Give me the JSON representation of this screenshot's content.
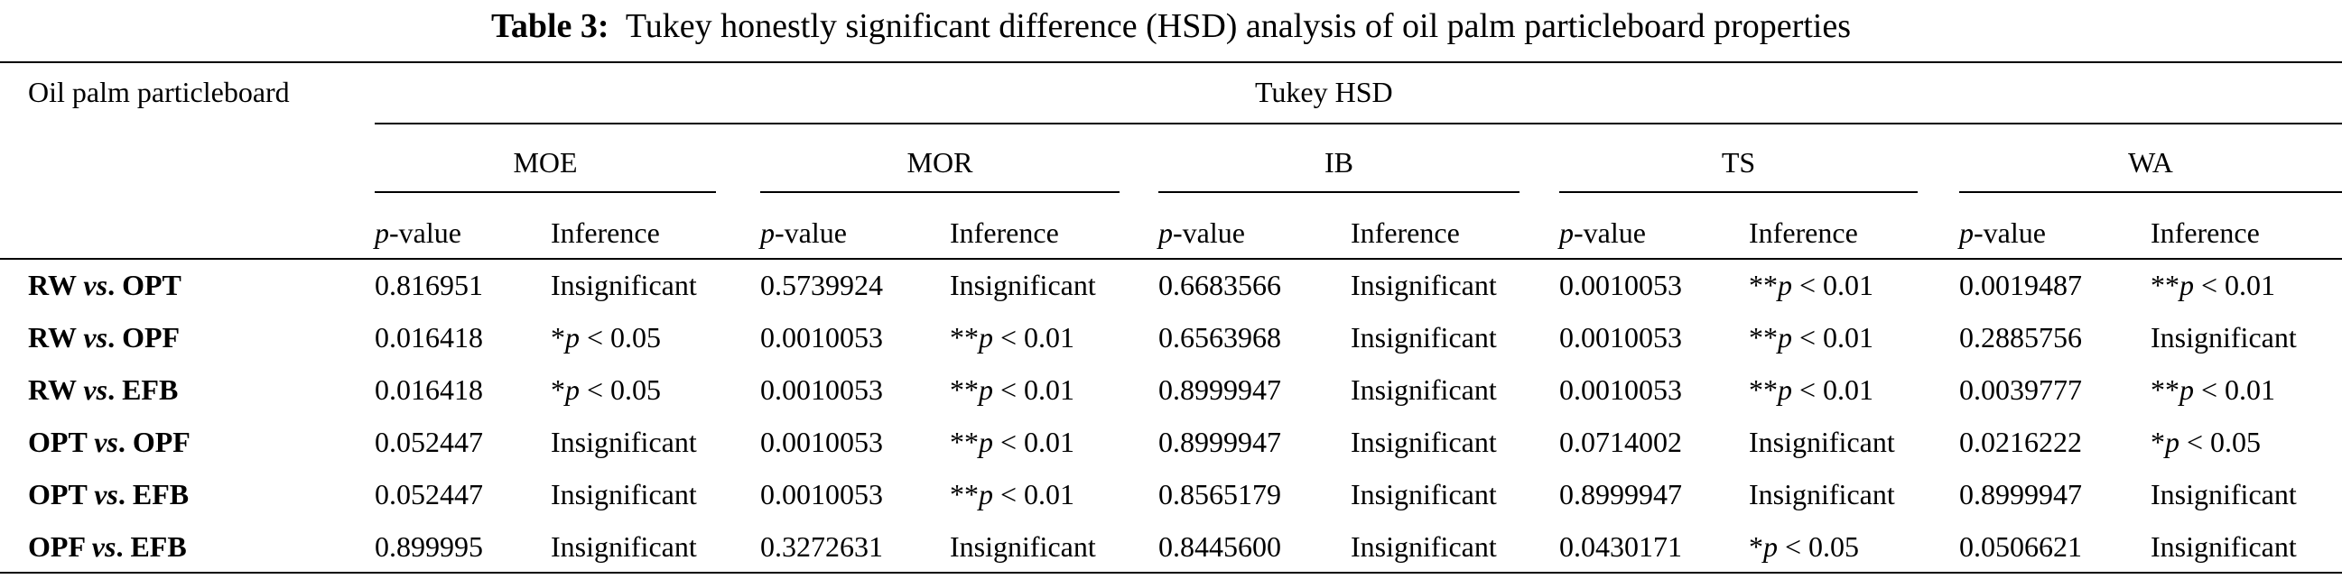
{
  "caption": {
    "label": "Table 3:",
    "text": "Tukey honestly significant difference (HSD) analysis of oil palm particleboard properties"
  },
  "table": {
    "stub_header": "Oil palm particleboard",
    "spanner": "Tukey HSD",
    "groups": [
      "MOE",
      "MOR",
      "IB",
      "TS",
      "WA"
    ],
    "sub_headers": {
      "p_italic": "p",
      "p_rest": "-value",
      "inference": "Inference"
    },
    "rows": [
      {
        "a": "RW",
        "vs": "vs",
        "b": "OPT",
        "cells": [
          {
            "p": "0.816951",
            "inf": {
              "stars": "",
              "p": "",
              "rest": "Insignificant"
            }
          },
          {
            "p": "0.5739924",
            "inf": {
              "stars": "",
              "p": "",
              "rest": "Insignificant"
            }
          },
          {
            "p": "0.6683566",
            "inf": {
              "stars": "",
              "p": "",
              "rest": "Insignificant"
            }
          },
          {
            "p": "0.0010053",
            "inf": {
              "stars": "**",
              "p": "p",
              "rest": " < 0.01"
            }
          },
          {
            "p": "0.0019487",
            "inf": {
              "stars": "**",
              "p": "p",
              "rest": " < 0.01"
            }
          }
        ]
      },
      {
        "a": "RW",
        "vs": "vs",
        "b": "OPF",
        "cells": [
          {
            "p": "0.016418",
            "inf": {
              "stars": "*",
              "p": "p",
              "rest": " < 0.05"
            }
          },
          {
            "p": "0.0010053",
            "inf": {
              "stars": "**",
              "p": "p",
              "rest": " < 0.01"
            }
          },
          {
            "p": "0.6563968",
            "inf": {
              "stars": "",
              "p": "",
              "rest": "Insignificant"
            }
          },
          {
            "p": "0.0010053",
            "inf": {
              "stars": "**",
              "p": "p",
              "rest": " < 0.01"
            }
          },
          {
            "p": "0.2885756",
            "inf": {
              "stars": "",
              "p": "",
              "rest": "Insignificant"
            }
          }
        ]
      },
      {
        "a": "RW",
        "vs": "vs",
        "b": "EFB",
        "cells": [
          {
            "p": "0.016418",
            "inf": {
              "stars": "*",
              "p": "p",
              "rest": " < 0.05"
            }
          },
          {
            "p": "0.0010053",
            "inf": {
              "stars": "**",
              "p": "p",
              "rest": " < 0.01"
            }
          },
          {
            "p": "0.8999947",
            "inf": {
              "stars": "",
              "p": "",
              "rest": "Insignificant"
            }
          },
          {
            "p": "0.0010053",
            "inf": {
              "stars": "**",
              "p": "p",
              "rest": " < 0.01"
            }
          },
          {
            "p": "0.0039777",
            "inf": {
              "stars": "**",
              "p": "p",
              "rest": " < 0.01"
            }
          }
        ]
      },
      {
        "a": "OPT",
        "vs": "vs",
        "b": "OPF",
        "cells": [
          {
            "p": "0.052447",
            "inf": {
              "stars": "",
              "p": "",
              "rest": "Insignificant"
            }
          },
          {
            "p": "0.0010053",
            "inf": {
              "stars": "**",
              "p": "p",
              "rest": " < 0.01"
            }
          },
          {
            "p": "0.8999947",
            "inf": {
              "stars": "",
              "p": "",
              "rest": "Insignificant"
            }
          },
          {
            "p": "0.0714002",
            "inf": {
              "stars": "",
              "p": "",
              "rest": "Insignificant"
            }
          },
          {
            "p": "0.0216222",
            "inf": {
              "stars": "*",
              "p": "p",
              "rest": " < 0.05"
            }
          }
        ]
      },
      {
        "a": "OPT",
        "vs": "vs",
        "b": "EFB",
        "cells": [
          {
            "p": "0.052447",
            "inf": {
              "stars": "",
              "p": "",
              "rest": "Insignificant"
            }
          },
          {
            "p": "0.0010053",
            "inf": {
              "stars": "**",
              "p": "p",
              "rest": " < 0.01"
            }
          },
          {
            "p": "0.8565179",
            "inf": {
              "stars": "",
              "p": "",
              "rest": "Insignificant"
            }
          },
          {
            "p": "0.8999947",
            "inf": {
              "stars": "",
              "p": "",
              "rest": "Insignificant"
            }
          },
          {
            "p": "0.8999947",
            "inf": {
              "stars": "",
              "p": "",
              "rest": "Insignificant"
            }
          }
        ]
      },
      {
        "a": "OPF",
        "vs": "vs",
        "b": "EFB",
        "cells": [
          {
            "p": "0.899995",
            "inf": {
              "stars": "",
              "p": "",
              "rest": "Insignificant"
            }
          },
          {
            "p": "0.3272631",
            "inf": {
              "stars": "",
              "p": "",
              "rest": "Insignificant"
            }
          },
          {
            "p": "0.8445600",
            "inf": {
              "stars": "",
              "p": "",
              "rest": "Insignificant"
            }
          },
          {
            "p": "0.0430171",
            "inf": {
              "stars": "*",
              "p": "p",
              "rest": " < 0.05"
            }
          },
          {
            "p": "0.0506621",
            "inf": {
              "stars": "",
              "p": "",
              "rest": "Insignificant"
            }
          }
        ]
      }
    ]
  }
}
